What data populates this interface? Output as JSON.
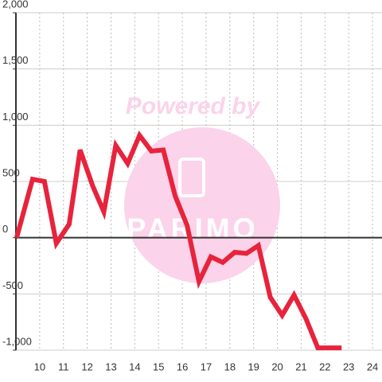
{
  "chart_data": {
    "type": "line",
    "watermark": "Powered by",
    "watermark_logo": "PARIMO",
    "x": [
      9.03,
      9.7,
      10.2,
      10.7,
      11.24,
      11.7,
      12.23,
      12.7,
      13.2,
      13.7,
      14.2,
      14.7,
      15.2,
      15.7,
      16.2,
      16.7,
      17.2,
      17.7,
      18.2,
      18.7,
      19.2,
      19.7,
      20.2,
      20.7,
      21.2,
      21.7,
      22.7
    ],
    "series": [
      {
        "color": "#e8233c",
        "values": [
          0,
          520,
          500,
          -50,
          120,
          780,
          460,
          230,
          820,
          660,
          910,
          770,
          780,
          370,
          110,
          -390,
          -170,
          -220,
          -130,
          -140,
          -70,
          -530,
          -690,
          -510,
          -720,
          -980,
          -980
        ]
      }
    ],
    "xlim": [
      9,
      24.4
    ],
    "xticks": [
      10,
      11,
      12,
      13,
      14,
      15,
      16,
      17,
      18,
      19,
      20,
      21,
      22,
      23,
      24
    ],
    "ylim": [
      -1000,
      2000
    ],
    "yticks": [
      {
        "value": -1000,
        "label": "-1,000"
      },
      -500,
      0,
      500,
      {
        "value": 1000,
        "label": "1,000"
      },
      {
        "value": 1500,
        "label": "1,500"
      },
      {
        "value": 2000,
        "label": "2,000"
      }
    ],
    "grid": true
  }
}
